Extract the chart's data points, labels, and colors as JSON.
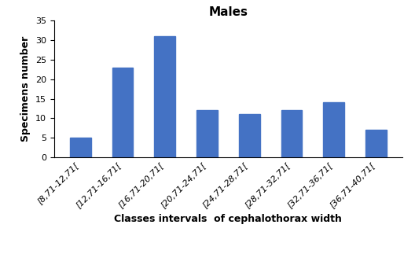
{
  "title": "Males",
  "xlabel": "Classes intervals  of cephalothorax width",
  "ylabel": "Specimens number",
  "categories": [
    "[8,71-12,71[",
    "[12,71-16,71[",
    "[16,71-20,71[",
    "[20,71-24,71[",
    "[24,71-28,71[",
    "[28,71-32,71[",
    "[32,71-36,71[",
    "[36,71-40,71["
  ],
  "values": [
    5,
    23,
    31,
    12,
    11,
    12,
    14,
    7
  ],
  "bar_color": "#4472C4",
  "ylim": [
    0,
    35
  ],
  "yticks": [
    0,
    5,
    10,
    15,
    20,
    25,
    30,
    35
  ],
  "title_fontsize": 11,
  "xlabel_fontsize": 9,
  "ylabel_fontsize": 9,
  "tick_labelsize": 8,
  "bar_width": 0.5,
  "background_color": "#ffffff"
}
